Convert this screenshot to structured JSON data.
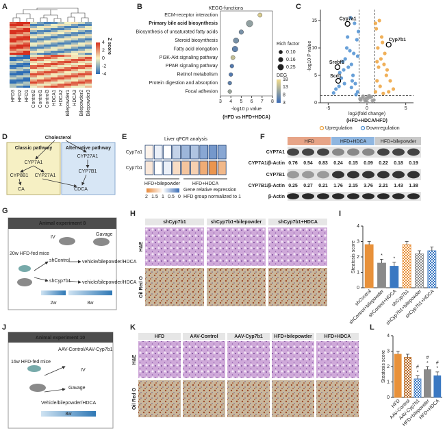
{
  "panel_labels": [
    "A",
    "B",
    "C",
    "D",
    "E",
    "F",
    "G",
    "H",
    "I",
    "J",
    "K",
    "L"
  ],
  "heatmap_a": {
    "columns": [
      "HFD3",
      "HFD2",
      "HFD1",
      "Control2",
      "Control1",
      "Control3",
      "HDCA1",
      "HDCA2",
      "Bilepowder1",
      "HDCA3",
      "Bilepowder2",
      "Bilepowder3"
    ],
    "colorbar_label": "Z score",
    "colorbar_ticks": [
      4,
      2,
      0,
      -2,
      -4
    ]
  },
  "chart_data": [
    {
      "type": "dot",
      "title": "KEGG-functions",
      "x_label": "-log10 p value",
      "subtitle": "(HFD vs HFD+HDCA)",
      "categories": [
        "ECM-receptor interaction",
        "Primary bile acid biosynthesis",
        "Biosynthesis of unsaturated fatty acids",
        "Steroid biosynthesis",
        "Fatty acid elongation",
        "PI3K-Akt signaling pathway",
        "PPAR signaling pathway",
        "Retinol metabolism",
        "Protein digestion and absorption",
        "Focal adhesion"
      ],
      "label_colors": [
        "#222",
        "#29a8d8",
        "#222",
        "#222",
        "#222",
        "#222",
        "#222",
        "#222",
        "#222",
        "#222"
      ],
      "values": [
        6.8,
        5.8,
        5.0,
        4.5,
        4.4,
        4.2,
        4.1,
        4.0,
        3.9,
        3.9
      ],
      "sizes": [
        0.12,
        0.28,
        0.14,
        0.2,
        0.22,
        0.12,
        0.1,
        0.1,
        0.1,
        0.1
      ],
      "deg": [
        16,
        10,
        8,
        8,
        6,
        14,
        5,
        5,
        6,
        11
      ],
      "xlim": [
        3,
        8
      ],
      "xticks": [
        3,
        4,
        5,
        6,
        7,
        8
      ],
      "size_title": "Rich factor",
      "size_ticks": [
        {
          "value": 0.1,
          "label": "0.10"
        },
        0.16,
        0.25
      ],
      "color_title": "DEG",
      "color_ticks": [
        18,
        13,
        8,
        3
      ],
      "colormap": [
        "#3b6bb5",
        "#f3dc8a"
      ]
    },
    {
      "type": "scatter",
      "x_label": "log2(fold change)",
      "y_label": "-log10 P value",
      "subtitle": "(HFD+HDCA/HFD)",
      "xlim": [
        -6,
        6
      ],
      "xticks": [
        -5,
        0,
        5
      ],
      "ylim": [
        0,
        17
      ],
      "yticks": [
        0,
        5,
        10,
        15
      ],
      "vlines": [
        -1,
        1
      ],
      "hline": 1.3,
      "series": [
        {
          "name": "Downregulation",
          "color": "#4d8fd1",
          "x": [
            -1.2,
            -1.5,
            -1.8,
            -2.0,
            -2.2,
            -2.5,
            -2.8,
            -3.0,
            -3.3,
            -3.6,
            -4.0,
            -4.3,
            -1.3,
            -1.6,
            -2.1,
            -2.6,
            -3.1,
            -1.4,
            -1.9,
            -2.4,
            -1.1,
            -1.7,
            -2.9,
            -3.5,
            -1.2,
            -2.0
          ],
          "y": [
            2.0,
            3.5,
            5.0,
            7.0,
            9.5,
            12.0,
            8.0,
            6.0,
            4.5,
            3.0,
            2.5,
            1.8,
            11.5,
            14.5,
            15.5,
            10.0,
            7.5,
            1.5,
            4.0,
            6.5,
            13.0,
            9.0,
            3.5,
            5.5,
            8.5,
            2.8
          ]
        },
        {
          "name": "Upregulation",
          "color": "#eda23c",
          "x": [
            1.1,
            1.3,
            1.5,
            1.8,
            2.0,
            2.3,
            2.6,
            3.0,
            3.4,
            1.2,
            1.6,
            1.9,
            2.2,
            1.4,
            1.7,
            2.5,
            2.8,
            1.1,
            1.3,
            2.1
          ],
          "y": [
            2.0,
            4.0,
            6.5,
            8.0,
            11.0,
            9.0,
            6.0,
            4.0,
            2.5,
            13.5,
            15.0,
            12.0,
            7.0,
            10.0,
            3.0,
            5.0,
            2.0,
            14.5,
            7.5,
            1.7
          ]
        },
        {
          "color": "#999999",
          "x": [
            -0.8,
            -0.5,
            -0.2,
            0.1,
            0.4,
            0.7,
            -0.6,
            0.3,
            -0.3,
            0.6,
            0,
            -0.9,
            0.9,
            0.2,
            -0.1
          ],
          "y": [
            0.5,
            1.2,
            0.3,
            0.8,
            1.0,
            0.4,
            0.9,
            1.3,
            0.6,
            1.1,
            0.2,
            0.7,
            0.5,
            1.2,
            0.9
          ]
        }
      ],
      "highlights": [
        {
          "label": "Cyp7a1",
          "x": -2.5,
          "y": 14.4
        },
        {
          "label": "Cyp7b1",
          "x": 2.8,
          "y": 10.6
        },
        {
          "label": "Srebf1",
          "x": -3.8,
          "y": 6.5
        },
        {
          "label": "Scd1",
          "x": -3.7,
          "y": 4.0
        }
      ]
    },
    {
      "type": "bar",
      "y_label": "Steatosis score",
      "categories": [
        "shControl",
        "shControl+bilepowder",
        "shControl+HDCA",
        "shCyp7b1",
        "shCyp7b1+bilepowder",
        "shCyp7b1+HDCA"
      ],
      "values": [
        2.8,
        1.6,
        1.4,
        2.8,
        2.2,
        2.4
      ],
      "errors": [
        0.2,
        0.25,
        0.25,
        0.2,
        0.2,
        0.25
      ],
      "colors": [
        "#e8913a",
        "#8a8a8a",
        "#3a78c2",
        "#e8913a",
        "#8a8a8a",
        "#3a78c2"
      ],
      "patterns": [
        "solid",
        "solid",
        "solid",
        "check",
        "check",
        "check"
      ],
      "annotations": [
        null,
        [
          "*"
        ],
        [
          "*"
        ],
        null,
        null,
        null
      ],
      "ylim": [
        0,
        4
      ],
      "yticks": [
        0,
        1,
        2,
        3,
        4
      ]
    },
    {
      "type": "bar",
      "y_label": "Steatosis score",
      "categories": [
        "HFD",
        "AAV-Control",
        "AAV-Cyp7b1",
        "HFD+bilepowder",
        "HFD+HDCA"
      ],
      "values": [
        2.8,
        2.6,
        1.2,
        1.8,
        1.4
      ],
      "errors": [
        0.2,
        0.2,
        0.2,
        0.2,
        0.25
      ],
      "colors": [
        "#e8913a",
        "#b5651d",
        "#3a78c2",
        "#8a8a8a",
        "#3a78c2"
      ],
      "patterns": [
        "solid",
        "check",
        "check",
        "solid",
        "solid"
      ],
      "annotations": [
        null,
        null,
        [
          "#",
          "*"
        ],
        [
          "#",
          "*"
        ],
        [
          "#",
          "*"
        ]
      ],
      "ylim": [
        0,
        4
      ],
      "yticks": [
        0,
        1,
        2,
        3,
        4
      ]
    }
  ],
  "pathway_d": {
    "top": "Cholesterol",
    "classic": "Classic pathway",
    "alternative": "Alternative pathway",
    "c1": "CYP7A1",
    "c2": "CYP8B1",
    "c3": "CYP27A1",
    "ca": "CA",
    "a1": "CYP27A1",
    "a2": "CYP7B1",
    "cdca": "CDCA"
  },
  "qpcr_e": {
    "title": "Liver qPCR analysis",
    "rows": [
      "Cyp7a1",
      "Cyp7b1"
    ],
    "values": [
      [
        1.1,
        0.9,
        1.0,
        0.7,
        0.5,
        0.6,
        0.4,
        0.3,
        0.4
      ],
      [
        1.2,
        1.0,
        0.9,
        1.3,
        1.5,
        1.4,
        1.7,
        1.9,
        1.6
      ]
    ],
    "groups": [
      "HFD+bilepowder",
      "HFD+HDCA"
    ],
    "colorbar_ticks": [
      2,
      1.5,
      1,
      0.5,
      0
    ],
    "colors": [
      "#3a6cb5",
      "#ffffff",
      "#e8893a"
    ],
    "legend_1": "Gene relative expression",
    "legend_2": "HFD group normalized to 1"
  },
  "western_f": {
    "groups": [
      "HFD",
      "HFD+HDCA",
      "HFD+bilepowder"
    ],
    "group_colors": [
      "#e7a487",
      "#8fb6e0",
      "#c9c9c9"
    ],
    "band_1": "CYP7A1",
    "ratio_1": "CYP7A1/β-Actin",
    "values_1": [
      0.76,
      0.54,
      0.83,
      0.24,
      0.15,
      0.09,
      0.22,
      0.18,
      0.19
    ],
    "band_2": "CYP7B1",
    "ratio_2": "CYP7B1/β-Actin",
    "values_2": [
      0.25,
      0.27,
      0.21,
      1.76,
      2.15,
      3.76,
      2.21,
      1.43,
      1.38
    ],
    "band_3": "β-Actin"
  },
  "experiment_g": {
    "title": "Animal experiment 8",
    "iv": "IV",
    "gavage": "Gavage",
    "mice": "20w HFD-fed mice",
    "group_1": "shControl",
    "treat_1": "vehicle/bilepowder/HDCA",
    "group_2": "shCyp7b1",
    "treat_2": "vehicle/bilepowder/HDCA",
    "t1": "2w",
    "t2": "8w"
  },
  "histology_h": {
    "columns": [
      "shCyp7b1",
      "shCyp7b1+bilepowder",
      "shCyp7b1+HDCA"
    ],
    "rows": [
      "H&E",
      "Oil Red O"
    ]
  },
  "experiment_j": {
    "title": "Animal experiment 10",
    "aav": "AAV-Control/AAV-Cyp7b1",
    "mice": "16w HFD-fed mice",
    "iv": "IV",
    "gavage": "Gavage",
    "treat": "Vehicle/bilepowder/HDCA",
    "t": "8w"
  },
  "histology_k": {
    "columns": [
      "HFD",
      "AAV-Control",
      "AAV-Cyp7b1",
      "HFD+bilepowder",
      "HFD+HDCA"
    ],
    "rows": [
      "H&E",
      "Oil Red O"
    ]
  }
}
